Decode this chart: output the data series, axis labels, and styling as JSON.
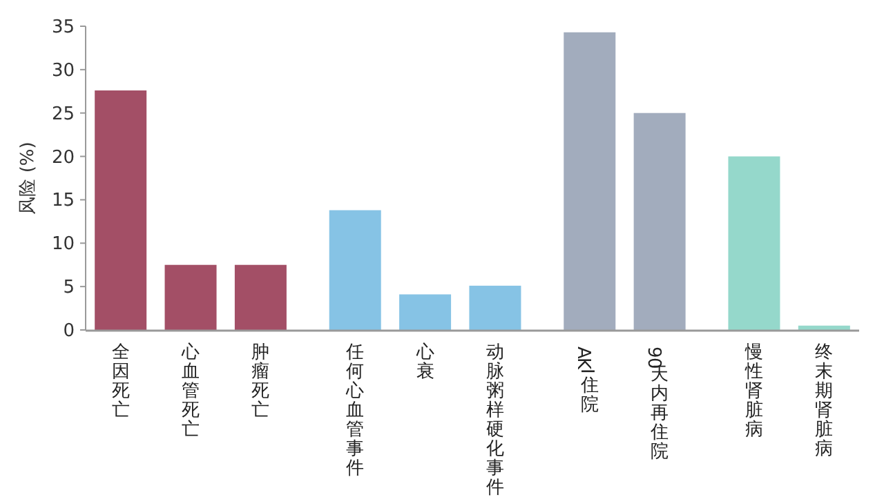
{
  "chart_data": {
    "type": "bar",
    "ylabel": "风险 (%)",
    "categories": [
      "全因死亡",
      "心血管死亡",
      "肿瘤死亡",
      "任何心血管事件",
      "心衰",
      "动脉粥样硬化事件",
      "AKI住院",
      "90天内再住院",
      "慢性肾脏病",
      "终末期肾脏病"
    ],
    "values": [
      27.6,
      7.5,
      7.5,
      13.8,
      4.1,
      5.1,
      34.3,
      25,
      20,
      0.5
    ],
    "colors": [
      "#a34f66",
      "#a34f66",
      "#a34f66",
      "#86c3e5",
      "#86c3e5",
      "#86c3e5",
      "#a2acbd",
      "#a2acbd",
      "#95d8cb",
      "#95d8cb"
    ],
    "ylim": [
      0,
      35
    ],
    "yticks": [
      0,
      5,
      10,
      15,
      20,
      25,
      30,
      35
    ],
    "grid": false
  }
}
